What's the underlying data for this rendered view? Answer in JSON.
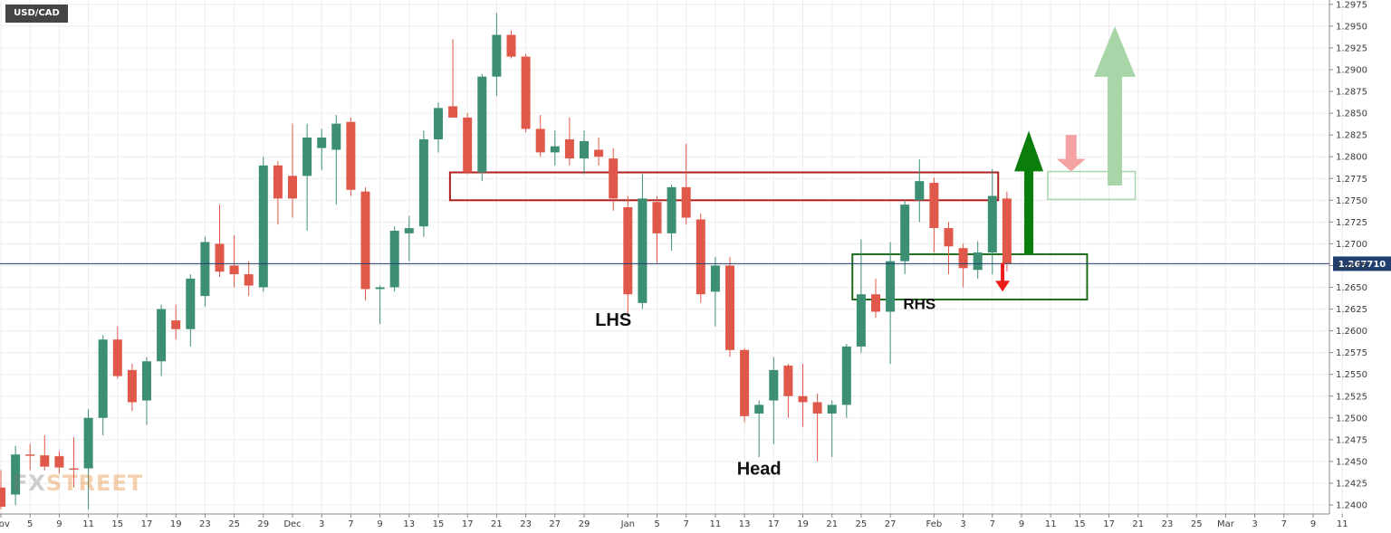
{
  "symbol": "USD/CAD",
  "watermark": {
    "prefix": "FX",
    "suffix": "STREET"
  },
  "last_price_label": "1.267710",
  "colors": {
    "bull": "#3d8f73",
    "bear": "#e0584a",
    "grid": "#ececec",
    "price_line": "#1f3f6e",
    "resistance_box": "#b02020",
    "support_box": "#1c6b1c",
    "arrow_up": "#0b7d0b",
    "arrow_down": "#ef1c1c",
    "faded_up": "#a8d6a8",
    "faded_down": "#f4a2a2"
  },
  "chart_data": {
    "type": "candlestick",
    "title": "",
    "symbol": "USD/CAD",
    "last_price": 1.26771,
    "ylim": [
      1.2395,
      1.2978
    ],
    "y_ticks": [
      "1.2975",
      "1.2950",
      "1.2925",
      "1.2900",
      "1.2875",
      "1.2850",
      "1.2825",
      "1.2800",
      "1.2775",
      "1.2750",
      "1.2725",
      "1.2700",
      "1.2675",
      "1.2650",
      "1.2625",
      "1.2600",
      "1.2575",
      "1.2550",
      "1.2525",
      "1.2500",
      "1.2475",
      "1.2450",
      "1.2425",
      "1.2400"
    ],
    "x_ticks": [
      {
        "label": "Nov",
        "slot": 0
      },
      {
        "label": "5",
        "slot": 2
      },
      {
        "label": "9",
        "slot": 4
      },
      {
        "label": "11",
        "slot": 6
      },
      {
        "label": "15",
        "slot": 8
      },
      {
        "label": "17",
        "slot": 10
      },
      {
        "label": "19",
        "slot": 12
      },
      {
        "label": "23",
        "slot": 14
      },
      {
        "label": "25",
        "slot": 16
      },
      {
        "label": "29",
        "slot": 18
      },
      {
        "label": "Dec",
        "slot": 20
      },
      {
        "label": "3",
        "slot": 22
      },
      {
        "label": "7",
        "slot": 24
      },
      {
        "label": "9",
        "slot": 26
      },
      {
        "label": "13",
        "slot": 28
      },
      {
        "label": "15",
        "slot": 30
      },
      {
        "label": "17",
        "slot": 32
      },
      {
        "label": "21",
        "slot": 34
      },
      {
        "label": "23",
        "slot": 36
      },
      {
        "label": "27",
        "slot": 38
      },
      {
        "label": "29",
        "slot": 40
      },
      {
        "label": "Jan",
        "slot": 43
      },
      {
        "label": "5",
        "slot": 45
      },
      {
        "label": "7",
        "slot": 47
      },
      {
        "label": "11",
        "slot": 49
      },
      {
        "label": "13",
        "slot": 51
      },
      {
        "label": "17",
        "slot": 53
      },
      {
        "label": "19",
        "slot": 55
      },
      {
        "label": "21",
        "slot": 57
      },
      {
        "label": "25",
        "slot": 59
      },
      {
        "label": "27",
        "slot": 61
      },
      {
        "label": "Feb",
        "slot": 64
      },
      {
        "label": "3",
        "slot": 66
      },
      {
        "label": "7",
        "slot": 68
      },
      {
        "label": "9",
        "slot": 70
      },
      {
        "label": "11",
        "slot": 72
      },
      {
        "label": "15",
        "slot": 74
      },
      {
        "label": "17",
        "slot": 76
      },
      {
        "label": "21",
        "slot": 78
      },
      {
        "label": "23",
        "slot": 80
      },
      {
        "label": "25",
        "slot": 82
      },
      {
        "label": "Mar",
        "slot": 84
      },
      {
        "label": "3",
        "slot": 86
      },
      {
        "label": "7",
        "slot": 88
      },
      {
        "label": "9",
        "slot": 90
      },
      {
        "label": "11",
        "slot": 92
      }
    ],
    "candles": [
      {
        "o": 1.242,
        "h": 1.244,
        "l": 1.2395,
        "c": 1.2398
      },
      {
        "o": 1.2412,
        "h": 1.2468,
        "l": 1.24,
        "c": 1.2458
      },
      {
        "o": 1.2458,
        "h": 1.247,
        "l": 1.244,
        "c": 1.2457
      },
      {
        "o": 1.2457,
        "h": 1.248,
        "l": 1.244,
        "c": 1.2444
      },
      {
        "o": 1.2456,
        "h": 1.2462,
        "l": 1.2436,
        "c": 1.2443
      },
      {
        "o": 1.2442,
        "h": 1.2478,
        "l": 1.242,
        "c": 1.2441
      },
      {
        "o": 1.2442,
        "h": 1.251,
        "l": 1.2395,
        "c": 1.25
      },
      {
        "o": 1.25,
        "h": 1.2595,
        "l": 1.248,
        "c": 1.259
      },
      {
        "o": 1.259,
        "h": 1.2605,
        "l": 1.2545,
        "c": 1.2548
      },
      {
        "o": 1.2555,
        "h": 1.2562,
        "l": 1.2508,
        "c": 1.2518
      },
      {
        "o": 1.252,
        "h": 1.257,
        "l": 1.2492,
        "c": 1.2565
      },
      {
        "o": 1.2565,
        "h": 1.263,
        "l": 1.2548,
        "c": 1.2625
      },
      {
        "o": 1.2612,
        "h": 1.263,
        "l": 1.259,
        "c": 1.2602
      },
      {
        "o": 1.2602,
        "h": 1.2665,
        "l": 1.2582,
        "c": 1.266
      },
      {
        "o": 1.264,
        "h": 1.2708,
        "l": 1.2628,
        "c": 1.2702
      },
      {
        "o": 1.27,
        "h": 1.2745,
        "l": 1.2662,
        "c": 1.2668
      },
      {
        "o": 1.2675,
        "h": 1.271,
        "l": 1.265,
        "c": 1.2665
      },
      {
        "o": 1.2665,
        "h": 1.268,
        "l": 1.264,
        "c": 1.2652
      },
      {
        "o": 1.265,
        "h": 1.28,
        "l": 1.2645,
        "c": 1.279
      },
      {
        "o": 1.279,
        "h": 1.2795,
        "l": 1.2722,
        "c": 1.2752
      },
      {
        "o": 1.2778,
        "h": 1.2838,
        "l": 1.273,
        "c": 1.2752
      },
      {
        "o": 1.2778,
        "h": 1.2838,
        "l": 1.2715,
        "c": 1.2822
      },
      {
        "o": 1.281,
        "h": 1.2832,
        "l": 1.2785,
        "c": 1.2822
      },
      {
        "o": 1.2808,
        "h": 1.2848,
        "l": 1.2745,
        "c": 1.2838
      },
      {
        "o": 1.284,
        "h": 1.2845,
        "l": 1.2755,
        "c": 1.2762
      },
      {
        "o": 1.276,
        "h": 1.2765,
        "l": 1.2635,
        "c": 1.2648
      },
      {
        "o": 1.2648,
        "h": 1.2652,
        "l": 1.2608,
        "c": 1.265
      },
      {
        "o": 1.265,
        "h": 1.272,
        "l": 1.2645,
        "c": 1.2715
      },
      {
        "o": 1.2712,
        "h": 1.2732,
        "l": 1.268,
        "c": 1.2718
      },
      {
        "o": 1.272,
        "h": 1.283,
        "l": 1.2708,
        "c": 1.282
      },
      {
        "o": 1.282,
        "h": 1.2862,
        "l": 1.2805,
        "c": 1.2856
      },
      {
        "o": 1.2858,
        "h": 1.2935,
        "l": 1.2845,
        "c": 1.2845
      },
      {
        "o": 1.2845,
        "h": 1.285,
        "l": 1.278,
        "c": 1.2782
      },
      {
        "o": 1.2782,
        "h": 1.2895,
        "l": 1.2772,
        "c": 1.2892
      },
      {
        "o": 1.2892,
        "h": 1.2965,
        "l": 1.287,
        "c": 1.294
      },
      {
        "o": 1.294,
        "h": 1.2945,
        "l": 1.2913,
        "c": 1.2915
      },
      {
        "o": 1.2915,
        "h": 1.2918,
        "l": 1.2828,
        "c": 1.2832
      },
      {
        "o": 1.2832,
        "h": 1.2848,
        "l": 1.28,
        "c": 1.2805
      },
      {
        "o": 1.2805,
        "h": 1.283,
        "l": 1.279,
        "c": 1.2812
      },
      {
        "o": 1.282,
        "h": 1.2845,
        "l": 1.279,
        "c": 1.2798
      },
      {
        "o": 1.2798,
        "h": 1.283,
        "l": 1.278,
        "c": 1.2818
      },
      {
        "o": 1.2808,
        "h": 1.2822,
        "l": 1.279,
        "c": 1.28
      },
      {
        "o": 1.2798,
        "h": 1.281,
        "l": 1.2738,
        "c": 1.2752
      },
      {
        "o": 1.2742,
        "h": 1.2755,
        "l": 1.262,
        "c": 1.2642
      },
      {
        "o": 1.2632,
        "h": 1.278,
        "l": 1.2625,
        "c": 1.2752
      },
      {
        "o": 1.2748,
        "h": 1.2755,
        "l": 1.2678,
        "c": 1.2712
      },
      {
        "o": 1.2712,
        "h": 1.2768,
        "l": 1.2692,
        "c": 1.2765
      },
      {
        "o": 1.2765,
        "h": 1.2815,
        "l": 1.2722,
        "c": 1.273
      },
      {
        "o": 1.2728,
        "h": 1.2735,
        "l": 1.2632,
        "c": 1.2642
      },
      {
        "o": 1.2645,
        "h": 1.2685,
        "l": 1.2605,
        "c": 1.2675
      },
      {
        "o": 1.2675,
        "h": 1.2685,
        "l": 1.257,
        "c": 1.2578
      },
      {
        "o": 1.2578,
        "h": 1.258,
        "l": 1.2495,
        "c": 1.2502
      },
      {
        "o": 1.2505,
        "h": 1.252,
        "l": 1.2455,
        "c": 1.2515
      },
      {
        "o": 1.252,
        "h": 1.257,
        "l": 1.247,
        "c": 1.2555
      },
      {
        "o": 1.256,
        "h": 1.2562,
        "l": 1.25,
        "c": 1.2525
      },
      {
        "o": 1.2525,
        "h": 1.2562,
        "l": 1.249,
        "c": 1.2518
      },
      {
        "o": 1.2518,
        "h": 1.2528,
        "l": 1.245,
        "c": 1.2505
      },
      {
        "o": 1.2505,
        "h": 1.252,
        "l": 1.2455,
        "c": 1.2515
      },
      {
        "o": 1.2515,
        "h": 1.2585,
        "l": 1.25,
        "c": 1.2582
      },
      {
        "o": 1.2582,
        "h": 1.2705,
        "l": 1.2575,
        "c": 1.2642
      },
      {
        "o": 1.2642,
        "h": 1.266,
        "l": 1.2615,
        "c": 1.2622
      },
      {
        "o": 1.2622,
        "h": 1.2702,
        "l": 1.2562,
        "c": 1.268
      },
      {
        "o": 1.268,
        "h": 1.275,
        "l": 1.2665,
        "c": 1.2745
      },
      {
        "o": 1.275,
        "h": 1.2797,
        "l": 1.2725,
        "c": 1.2772
      },
      {
        "o": 1.277,
        "h": 1.2776,
        "l": 1.269,
        "c": 1.2718
      },
      {
        "o": 1.2718,
        "h": 1.2725,
        "l": 1.2665,
        "c": 1.2697
      },
      {
        "o": 1.2695,
        "h": 1.27,
        "l": 1.265,
        "c": 1.2672
      },
      {
        "o": 1.267,
        "h": 1.2703,
        "l": 1.266,
        "c": 1.269
      },
      {
        "o": 1.269,
        "h": 1.2786,
        "l": 1.2665,
        "c": 1.2755
      },
      {
        "o": 1.2752,
        "h": 1.276,
        "l": 1.2668,
        "c": 1.2677
      }
    ],
    "annotations": [
      {
        "label": "LHS",
        "slot": 42,
        "price": 1.2606
      },
      {
        "label": "Head",
        "slot": 52,
        "price": 1.2435
      },
      {
        "label": "RHS",
        "slot": 63,
        "price": 1.2625
      }
    ],
    "zones": {
      "resistance": {
        "slot_from": 30.8,
        "slot_to": 68.4,
        "top": 1.2782,
        "bottom": 1.275
      },
      "support": {
        "slot_from": 58.4,
        "slot_to": 74.5,
        "top": 1.2688,
        "bottom": 1.2636
      }
    },
    "projection": {
      "box": {
        "slot_from": 71.8,
        "slot_to": 77.8,
        "top": 1.2783,
        "bottom": 1.2751
      },
      "faded_up_arrow": {
        "slot": 76.4,
        "from": 1.2767,
        "to": 1.295
      },
      "faded_down_arrow": {
        "slot": 73.4,
        "from": 1.2825,
        "to": 1.2783
      },
      "up_arrow": {
        "slot": 70.5,
        "from": 1.2688,
        "to": 1.283
      },
      "down_arrow": {
        "slot": 68.7,
        "from": 1.2678,
        "to": 1.2645
      }
    }
  }
}
